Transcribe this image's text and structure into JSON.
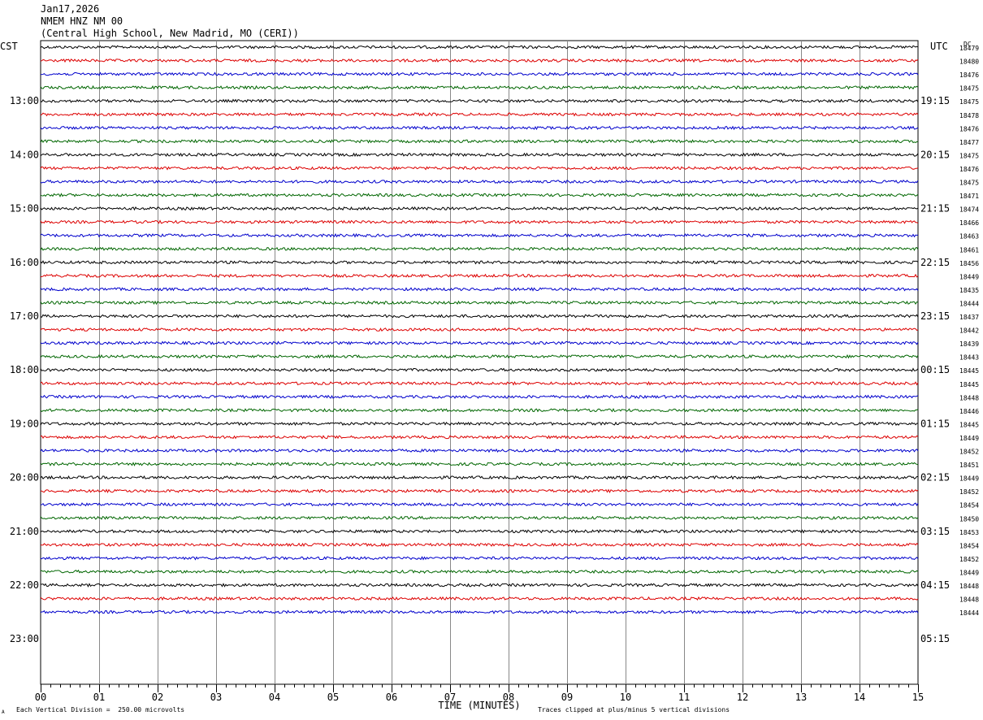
{
  "header": {
    "date": "Jan17,2026",
    "station": "NMEM HNZ NM 00",
    "location": "(Central High School, New Madrid, MO (CERI))"
  },
  "left_zone_label": "CST",
  "right_zone_label": "UTC",
  "dc_label": "DC",
  "footer": {
    "vertical_division": "Each Vertical Division =  250.00 microvolts",
    "clipping_note": "Traces clipped at plus/minus 5 vertical divisions",
    "corner_mark": "A"
  },
  "chart_data": {
    "type": "line",
    "title": "NMEM HNZ NM 00",
    "xlabel": "TIME (MINUTES)",
    "x_ticks": [
      "00",
      "01",
      "02",
      "03",
      "04",
      "05",
      "06",
      "07",
      "08",
      "09",
      "10",
      "11",
      "12",
      "13",
      "14",
      "15"
    ],
    "xlim": [
      0,
      15
    ],
    "grid": true,
    "trace_colors": [
      "#000000",
      "#dd0000",
      "#0000cc",
      "#006600"
    ],
    "left_time_labels": [
      "13:00",
      "14:00",
      "15:00",
      "16:00",
      "17:00",
      "18:00",
      "19:00",
      "20:00",
      "21:00",
      "22:00",
      "23:00"
    ],
    "right_time_labels": [
      "19:15",
      "20:15",
      "21:15",
      "22:15",
      "23:15",
      "00:15",
      "01:15",
      "02:15",
      "03:15",
      "04:15",
      "05:15"
    ],
    "dc_offsets": [
      18479,
      18480,
      18476,
      18475,
      18475,
      18478,
      18476,
      18477,
      18475,
      18476,
      18475,
      18471,
      18474,
      18466,
      18463,
      18461,
      18456,
      18449,
      18435,
      18444,
      18437,
      18442,
      18439,
      18443,
      18445,
      18445,
      18448,
      18446,
      18445,
      18449,
      18452,
      18451,
      18449,
      18452,
      18454,
      18450,
      18453,
      18454,
      18452,
      18449,
      18448,
      18448,
      18444
    ],
    "trace_count": 43,
    "trace_interval_minutes": 15
  }
}
